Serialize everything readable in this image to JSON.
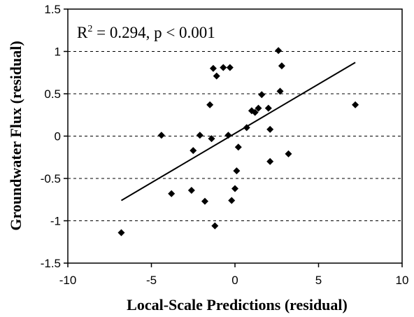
{
  "chart_data": {
    "type": "scatter",
    "xlabel": "Local-Scale Predictions (residual)",
    "ylabel": "Groundwater Flux (residual)",
    "xlim": [
      -10,
      10
    ],
    "ylim": [
      -1.5,
      1.5
    ],
    "x_ticks": [
      "-10",
      "-5",
      "0",
      "5",
      "10"
    ],
    "y_ticks": [
      "1.5",
      "1",
      "0.5",
      "0",
      "-0.5",
      "-1",
      "-1.5"
    ],
    "grid": "horizontal-dashed",
    "annotation": {
      "r2_label": "R",
      "r2_sup": "2",
      "rest": " = 0.294, p < 0.001"
    },
    "trendline": {
      "x": [
        -6.8,
        7.2
      ],
      "y": [
        -0.76,
        0.87
      ]
    },
    "points": [
      {
        "x": -6.8,
        "y": -1.14
      },
      {
        "x": -4.4,
        "y": 0.01
      },
      {
        "x": -3.8,
        "y": -0.68
      },
      {
        "x": -2.6,
        "y": -0.64
      },
      {
        "x": -2.5,
        "y": -0.17
      },
      {
        "x": -2.1,
        "y": 0.01
      },
      {
        "x": -1.8,
        "y": -0.77
      },
      {
        "x": -1.5,
        "y": 0.37
      },
      {
        "x": -1.4,
        "y": -0.03
      },
      {
        "x": -1.3,
        "y": 0.8
      },
      {
        "x": -1.1,
        "y": 0.71
      },
      {
        "x": -1.2,
        "y": -1.06
      },
      {
        "x": -0.7,
        "y": 0.81
      },
      {
        "x": -0.3,
        "y": 0.81
      },
      {
        "x": -0.4,
        "y": 0.01
      },
      {
        "x": -0.2,
        "y": -0.76
      },
      {
        "x": 0.0,
        "y": -0.62
      },
      {
        "x": 0.1,
        "y": -0.41
      },
      {
        "x": 0.2,
        "y": -0.13
      },
      {
        "x": 0.7,
        "y": 0.1
      },
      {
        "x": 1.0,
        "y": 0.3
      },
      {
        "x": 1.2,
        "y": 0.28
      },
      {
        "x": 1.4,
        "y": 0.33
      },
      {
        "x": 1.6,
        "y": 0.49
      },
      {
        "x": 2.0,
        "y": 0.33
      },
      {
        "x": 2.1,
        "y": 0.08
      },
      {
        "x": 2.1,
        "y": -0.3
      },
      {
        "x": 2.6,
        "y": 1.01
      },
      {
        "x": 2.7,
        "y": 0.53
      },
      {
        "x": 2.8,
        "y": 0.83
      },
      {
        "x": 3.2,
        "y": -0.21
      },
      {
        "x": 7.2,
        "y": 0.37
      }
    ]
  }
}
